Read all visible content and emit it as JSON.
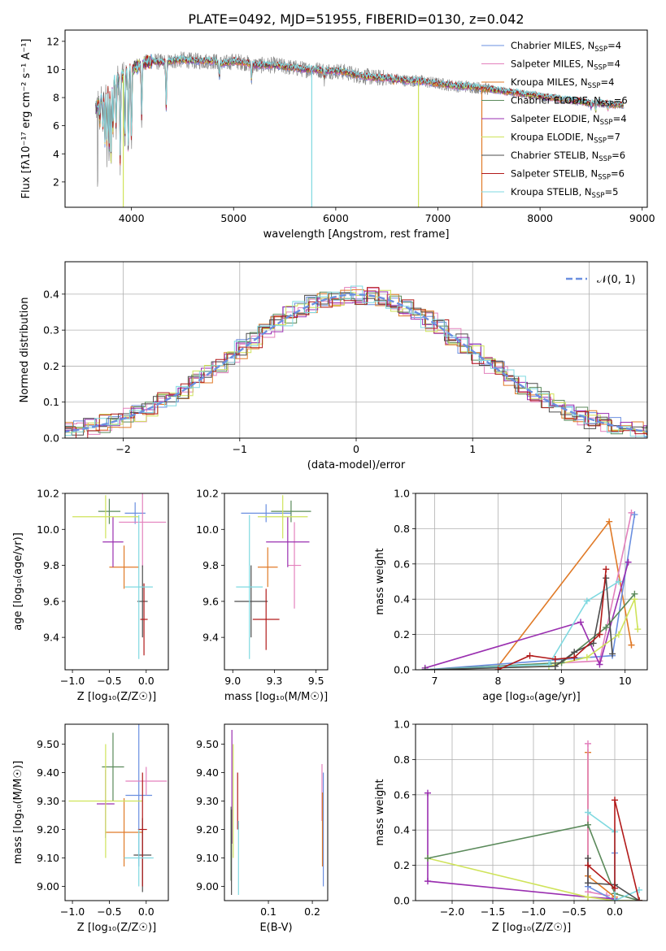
{
  "title": "PLATE=0492, MJD=51955, FIBERID=0130, z=0.042",
  "colors": {
    "chabrier_miles": "#6a8fe0",
    "salpeter_miles": "#e381bd",
    "kroupa_miles": "#e07a27",
    "chabrier_elodie": "#5b8a5b",
    "salpeter_elodie": "#9a2fb0",
    "kroupa_elodie": "#cfe35a",
    "chabrier_stelib": "#4d4d4d",
    "salpeter_stelib": "#b21a1a",
    "kroupa_stelib": "#7fd9e0",
    "data_gray": "#8a8a8a",
    "gauss": "#6a8fe0",
    "grid": "#b0b0b0"
  },
  "chart_data": [
    {
      "id": "spectrum",
      "type": "line",
      "title": "PLATE=0492, MJD=51955, FIBERID=0130, z=0.042",
      "xlabel": "wavelength [Angstrom, rest frame]",
      "ylabel": "Flux [fλ10⁻¹⁷ erg cm⁻² s⁻¹ A⁻¹]",
      "xlim": [
        3350,
        9050
      ],
      "ylim": [
        0.2,
        12.8
      ],
      "xticks": [
        4000,
        5000,
        6000,
        7000,
        8000,
        9000
      ],
      "yticks": [
        2,
        4,
        6,
        8,
        10,
        12
      ],
      "grid": false,
      "legend_position": "right",
      "legend": [
        {
          "label": "Chabrier MILES, N",
          "sub": "SSP",
          "suffix": "=4",
          "color": "chabrier_miles"
        },
        {
          "label": "Salpeter MILES, N",
          "sub": "SSP",
          "suffix": "=4",
          "color": "salpeter_miles"
        },
        {
          "label": "Kroupa MILES, N",
          "sub": "SSP",
          "suffix": "=4",
          "color": "kroupa_miles"
        },
        {
          "label": "Chabrier ELODIE, N",
          "sub": "SSP",
          "suffix": "=6",
          "color": "chabrier_elodie"
        },
        {
          "label": "Salpeter ELODIE, N",
          "sub": "SSP",
          "suffix": "=4",
          "color": "salpeter_elodie"
        },
        {
          "label": "Kroupa ELODIE, N",
          "sub": "SSP",
          "suffix": "=7",
          "color": "kroupa_elodie"
        },
        {
          "label": "Chabrier STELIB, N",
          "sub": "SSP",
          "suffix": "=6",
          "color": "chabrier_stelib"
        },
        {
          "label": "Salpeter STELIB, N",
          "sub": "SSP",
          "suffix": "=6",
          "color": "salpeter_stelib"
        },
        {
          "label": "Kroupa STELIB, N",
          "sub": "SSP",
          "suffix": "=5",
          "color": "kroupa_stelib"
        }
      ],
      "continuum": [
        [
          3650,
          7.2
        ],
        [
          3700,
          8.0
        ],
        [
          3750,
          8.5
        ],
        [
          3800,
          8.9
        ],
        [
          3850,
          9.2
        ],
        [
          3900,
          9.5
        ],
        [
          3950,
          9.7
        ],
        [
          4000,
          10.0
        ],
        [
          4100,
          10.4
        ],
        [
          4200,
          10.6
        ],
        [
          4300,
          10.5
        ],
        [
          4400,
          10.6
        ],
        [
          4500,
          10.7
        ],
        [
          4600,
          10.6
        ],
        [
          4700,
          10.6
        ],
        [
          4800,
          10.6
        ],
        [
          4900,
          10.4
        ],
        [
          5000,
          10.6
        ],
        [
          5100,
          10.5
        ],
        [
          5200,
          10.3
        ],
        [
          5300,
          10.3
        ],
        [
          5400,
          10.3
        ],
        [
          5500,
          10.2
        ],
        [
          5600,
          10.1
        ],
        [
          5700,
          10.0
        ],
        [
          5800,
          10.0
        ],
        [
          5900,
          9.9
        ],
        [
          6000,
          9.9
        ],
        [
          6100,
          9.8
        ],
        [
          6200,
          9.6
        ],
        [
          6300,
          9.5
        ],
        [
          6400,
          9.4
        ],
        [
          6500,
          9.4
        ],
        [
          6600,
          9.3
        ],
        [
          6700,
          9.2
        ],
        [
          6800,
          9.2
        ],
        [
          6900,
          9.1
        ],
        [
          7000,
          9.0
        ],
        [
          7100,
          8.9
        ],
        [
          7200,
          8.8
        ],
        [
          7300,
          8.8
        ],
        [
          7400,
          8.7
        ],
        [
          7500,
          8.6
        ],
        [
          7600,
          8.5
        ],
        [
          7700,
          8.4
        ],
        [
          7800,
          8.3
        ],
        [
          7900,
          8.2
        ],
        [
          8000,
          8.1
        ],
        [
          8100,
          8.0
        ],
        [
          8200,
          7.9
        ],
        [
          8300,
          7.8
        ],
        [
          8400,
          7.7
        ],
        [
          8500,
          7.6
        ],
        [
          8600,
          7.6
        ],
        [
          8700,
          7.5
        ],
        [
          8800,
          7.5
        ]
      ],
      "absorption": [
        [
          3690,
          6.0
        ],
        [
          3720,
          5.5
        ],
        [
          3740,
          4.6
        ],
        [
          3760,
          3.9
        ],
        [
          3780,
          3.6
        ],
        [
          3800,
          3.2
        ],
        [
          3820,
          5.1
        ],
        [
          3850,
          5.4
        ],
        [
          3890,
          3.0
        ],
        [
          3935,
          3.8
        ],
        [
          3970,
          3.4
        ],
        [
          4000,
          4.2
        ],
        [
          4100,
          6.3
        ],
        [
          4340,
          6.9
        ],
        [
          4860,
          9.3
        ],
        [
          5175,
          9.2
        ],
        [
          5890,
          9.3
        ],
        [
          6563,
          9.1
        ],
        [
          8500,
          7.3
        ],
        [
          8545,
          7.1
        ],
        [
          8665,
          7.2
        ]
      ],
      "dropouts": [
        {
          "x": 3920,
          "series": "kroupa_elodie",
          "max_x": 3920
        },
        {
          "x": 5765,
          "series": "kroupa_stelib"
        },
        {
          "x": 6810,
          "series": "kroupa_elodie"
        },
        {
          "x": 7430,
          "series": "kroupa_miles"
        }
      ]
    },
    {
      "id": "residual-hist",
      "type": "line",
      "xlabel": "(data-model)/error",
      "ylabel": "Normed distribution",
      "xlim": [
        -2.5,
        2.5
      ],
      "ylim": [
        0,
        0.49
      ],
      "xticks": [
        -2,
        -1,
        0,
        1,
        2
      ],
      "yticks": [
        0.0,
        0.1,
        0.2,
        0.3,
        0.4
      ],
      "grid": true,
      "legend_position": "top-right",
      "legend_label": "𝒩(0, 1)",
      "bin_width": 0.1
    },
    {
      "id": "age-vs-Z",
      "type": "scatter",
      "xlabel": "Z [log₁₀(Z/Z☉)]",
      "ylabel": "age  [log₁₀(age/yr)]",
      "xlim": [
        -1.1,
        0.3
      ],
      "ylim": [
        9.22,
        10.2
      ],
      "xticks": [
        -1.0,
        -0.5,
        0.0
      ],
      "yticks": [
        9.4,
        9.6,
        9.8,
        10.0,
        10.2
      ],
      "points": [
        {
          "series": "chabrier_miles",
          "x": -0.15,
          "y": 10.09,
          "xerr": 0.14,
          "yerr": 0.06
        },
        {
          "series": "salpeter_miles",
          "x": -0.05,
          "y": 10.04,
          "xerr": 0.32,
          "yerr": 0.25
        },
        {
          "series": "kroupa_miles",
          "x": -0.3,
          "y": 9.79,
          "xerr": 0.2,
          "yerr": 0.12
        },
        {
          "series": "chabrier_elodie",
          "x": -0.5,
          "y": 10.1,
          "xerr": 0.15,
          "yerr": 0.07
        },
        {
          "series": "salpeter_elodie",
          "x": -0.45,
          "y": 9.93,
          "xerr": 0.14,
          "yerr": 0.14
        },
        {
          "series": "kroupa_elodie",
          "x": -0.55,
          "y": 10.07,
          "xerr": 0.45,
          "yerr": 0.12
        },
        {
          "series": "chabrier_stelib",
          "x": -0.05,
          "y": 9.6,
          "xerr": 0.07,
          "yerr": 0.2
        },
        {
          "series": "salpeter_stelib",
          "x": -0.03,
          "y": 9.5,
          "xerr": 0.05,
          "yerr": 0.2
        },
        {
          "series": "kroupa_stelib",
          "x": -0.1,
          "y": 9.68,
          "xerr": 0.19,
          "yerr": 0.4
        }
      ]
    },
    {
      "id": "age-vs-mass",
      "type": "scatter",
      "xlabel": "mass [log₁₀(M/M☉)]",
      "ylabel": "",
      "xlim": [
        8.95,
        9.57
      ],
      "ylim": [
        9.22,
        10.2
      ],
      "xticks": [
        9.0,
        9.25,
        9.5
      ],
      "yticks": [
        9.4,
        9.6,
        9.8,
        10.0,
        10.2
      ],
      "points": [
        {
          "series": "chabrier_miles",
          "x": 9.2,
          "y": 10.09,
          "xerr": 0.15,
          "yerr": 0.05
        },
        {
          "series": "salpeter_miles",
          "x": 9.37,
          "y": 9.8,
          "xerr": 0.04,
          "yerr": 0.24
        },
        {
          "series": "kroupa_miles",
          "x": 9.21,
          "y": 9.79,
          "xerr": 0.06,
          "yerr": 0.11
        },
        {
          "series": "chabrier_elodie",
          "x": 9.35,
          "y": 10.1,
          "xerr": 0.12,
          "yerr": 0.06
        },
        {
          "series": "salpeter_elodie",
          "x": 9.33,
          "y": 9.93,
          "xerr": 0.13,
          "yerr": 0.14
        },
        {
          "series": "kroupa_elodie",
          "x": 9.3,
          "y": 10.07,
          "xerr": 0.15,
          "yerr": 0.12
        },
        {
          "series": "chabrier_stelib",
          "x": 9.11,
          "y": 9.6,
          "xerr": 0.1,
          "yerr": 0.2
        },
        {
          "series": "salpeter_stelib",
          "x": 9.2,
          "y": 9.5,
          "xerr": 0.08,
          "yerr": 0.17
        },
        {
          "series": "kroupa_stelib",
          "x": 9.1,
          "y": 9.68,
          "xerr": 0.08,
          "yerr": 0.4
        }
      ]
    },
    {
      "id": "mass-weight-vs-age",
      "type": "line",
      "xlabel": "age  [log₁₀(age/yr)]",
      "ylabel": "mass weight",
      "xlim": [
        6.7,
        10.35
      ],
      "ylim": [
        0,
        1.0
      ],
      "xticks": [
        7,
        8,
        9,
        10
      ],
      "yticks": [
        0.0,
        0.2,
        0.4,
        0.6,
        0.8,
        1.0
      ],
      "grid": true,
      "series": [
        {
          "series": "kroupa_miles",
          "x": [
            6.85,
            8.0,
            9.75,
            10.1
          ],
          "y": [
            0.0,
            0.02,
            0.84,
            0.14
          ]
        },
        {
          "series": "salpeter_miles",
          "x": [
            6.85,
            9.6,
            10.1
          ],
          "y": [
            0.0,
            0.05,
            0.89
          ]
        },
        {
          "series": "chabrier_miles",
          "x": [
            6.85,
            9.8,
            10.15
          ],
          "y": [
            0.0,
            0.08,
            0.88
          ]
        },
        {
          "series": "salpeter_elodie",
          "x": [
            6.85,
            9.3,
            9.6,
            10.05
          ],
          "y": [
            0.01,
            0.27,
            0.03,
            0.61
          ]
        },
        {
          "series": "kroupa_elodie",
          "x": [
            6.85,
            8.8,
            9.4,
            9.9,
            10.15,
            10.2
          ],
          "y": [
            0.0,
            0.02,
            0.07,
            0.2,
            0.4,
            0.23
          ]
        },
        {
          "series": "chabrier_elodie",
          "x": [
            6.85,
            9.0,
            9.7,
            10.15
          ],
          "y": [
            0.0,
            0.04,
            0.24,
            0.43
          ]
        },
        {
          "series": "kroupa_stelib",
          "x": [
            6.85,
            8.8,
            9.4,
            9.9
          ],
          "y": [
            0.0,
            0.03,
            0.39,
            0.5
          ]
        },
        {
          "series": "chabrier_stelib",
          "x": [
            6.85,
            8.9,
            9.2,
            9.5,
            9.7,
            9.8
          ],
          "y": [
            0.0,
            0.02,
            0.1,
            0.15,
            0.52,
            0.09
          ]
        },
        {
          "series": "salpeter_stelib",
          "x": [
            8.0,
            8.5,
            8.9,
            9.2,
            9.6,
            9.7
          ],
          "y": [
            0.0,
            0.08,
            0.06,
            0.07,
            0.2,
            0.57
          ]
        }
      ]
    },
    {
      "id": "mass-vs-Z",
      "type": "scatter",
      "xlabel": "Z [log₁₀(Z/Z☉)]",
      "ylabel": "mass [log₁₀(M/M☉)]",
      "xlim": [
        -1.1,
        0.3
      ],
      "ylim": [
        8.95,
        9.57
      ],
      "xticks": [
        -1.0,
        -0.5,
        0.0
      ],
      "yticks": [
        9.0,
        9.1,
        9.2,
        9.3,
        9.4,
        9.5
      ],
      "points": [
        {
          "series": "chabrier_miles",
          "x": -0.1,
          "y": 9.32,
          "xerr": 0.18,
          "yerr": 0.25
        },
        {
          "series": "salpeter_miles",
          "x": 0.0,
          "y": 9.37,
          "xerr": 0.28,
          "yerr": 0.05
        },
        {
          "series": "kroupa_miles",
          "x": -0.3,
          "y": 9.19,
          "xerr": 0.25,
          "yerr": 0.12
        },
        {
          "series": "chabrier_elodie",
          "x": -0.45,
          "y": 9.42,
          "xerr": 0.15,
          "yerr": 0.12
        },
        {
          "series": "salpeter_elodie",
          "x": -0.55,
          "y": 9.29,
          "xerr": 0.12,
          "yerr": 0.12
        },
        {
          "series": "kroupa_elodie",
          "x": -0.55,
          "y": 9.3,
          "xerr": 0.5,
          "yerr": 0.2
        },
        {
          "series": "chabrier_stelib",
          "x": -0.05,
          "y": 9.11,
          "xerr": 0.12,
          "yerr": 0.13
        },
        {
          "series": "salpeter_stelib",
          "x": -0.05,
          "y": 9.2,
          "xerr": 0.06,
          "yerr": 0.2
        },
        {
          "series": "kroupa_stelib",
          "x": -0.1,
          "y": 9.1,
          "xerr": 0.2,
          "yerr": 0.1
        }
      ]
    },
    {
      "id": "mass-vs-ebv",
      "type": "scatter",
      "xlabel": "E(B-V)",
      "ylabel": "",
      "xlim": [
        0.0,
        0.235
      ],
      "ylim": [
        8.95,
        9.57
      ],
      "xticks": [
        0.1,
        0.2
      ],
      "yticks": [
        9.0,
        9.1,
        9.2,
        9.3,
        9.4,
        9.5
      ],
      "points": [
        {
          "series": "chabrier_miles",
          "x": 0.225,
          "y": 9.2,
          "xerr": 0.0,
          "yerr": 0.2
        },
        {
          "series": "salpeter_miles",
          "x": 0.222,
          "y": 9.33,
          "xerr": 0.0,
          "yerr": 0.1
        },
        {
          "series": "kroupa_miles",
          "x": 0.223,
          "y": 9.2,
          "xerr": 0.0,
          "yerr": 0.13
        },
        {
          "series": "chabrier_elodie",
          "x": 0.015,
          "y": 9.15,
          "xerr": 0.0,
          "yerr": 0.13
        },
        {
          "series": "salpeter_elodie",
          "x": 0.017,
          "y": 9.35,
          "xerr": 0.0,
          "yerr": 0.2
        },
        {
          "series": "kroupa_elodie",
          "x": 0.02,
          "y": 9.3,
          "xerr": 0.0,
          "yerr": 0.2
        },
        {
          "series": "chabrier_stelib",
          "x": 0.016,
          "y": 9.12,
          "xerr": 0.0,
          "yerr": 0.15
        },
        {
          "series": "salpeter_stelib",
          "x": 0.03,
          "y": 9.3,
          "xerr": 0.0,
          "yerr": 0.1
        },
        {
          "series": "kroupa_stelib",
          "x": 0.032,
          "y": 9.1,
          "xerr": 0.0,
          "yerr": 0.13
        }
      ]
    },
    {
      "id": "mass-weight-vs-Z",
      "type": "line",
      "xlabel": "Z [log₁₀(Z/Z☉)]",
      "ylabel": "mass weight",
      "xlim": [
        -2.45,
        0.4
      ],
      "ylim": [
        0,
        1.0
      ],
      "xticks": [
        -2.0,
        -1.5,
        -1.0,
        -0.5,
        0.0
      ],
      "yticks": [
        0.0,
        0.2,
        0.4,
        0.6,
        0.8,
        1.0
      ],
      "grid": true,
      "series": [
        {
          "series": "kroupa_miles",
          "x": [
            -0.33,
            -0.33,
            0.0
          ],
          "y": [
            0.84,
            0.14,
            0.02
          ]
        },
        {
          "series": "salpeter_miles",
          "x": [
            -0.33,
            -0.33,
            -0.1
          ],
          "y": [
            0.89,
            0.05,
            0.03
          ]
        },
        {
          "series": "chabrier_miles",
          "x": [
            -0.33,
            0.0,
            0.0
          ],
          "y": [
            0.08,
            0.0,
            0.27
          ]
        },
        {
          "series": "salpeter_elodie",
          "x": [
            -2.3,
            -2.3,
            -0.33,
            0.0
          ],
          "y": [
            0.61,
            0.11,
            0.02,
            0.01
          ]
        },
        {
          "series": "kroupa_elodie",
          "x": [
            -2.3,
            -0.33,
            0.0,
            0.3
          ],
          "y": [
            0.24,
            0.02,
            0.0,
            0.0
          ]
        },
        {
          "series": "chabrier_elodie",
          "x": [
            -2.3,
            -0.33,
            0.0,
            0.3
          ],
          "y": [
            0.24,
            0.43,
            0.04,
            0.0
          ]
        },
        {
          "series": "kroupa_stelib",
          "x": [
            -0.33,
            0.0,
            0.0,
            0.3
          ],
          "y": [
            0.5,
            0.39,
            0.0,
            0.06
          ]
        },
        {
          "series": "chabrier_stelib",
          "x": [
            -0.33,
            -0.33,
            0.0,
            0.3
          ],
          "y": [
            0.24,
            0.1,
            0.09,
            0.0
          ]
        },
        {
          "series": "salpeter_stelib",
          "x": [
            -0.33,
            0.0,
            0.0,
            0.3
          ],
          "y": [
            0.2,
            0.07,
            0.57,
            0.0
          ]
        }
      ]
    }
  ]
}
